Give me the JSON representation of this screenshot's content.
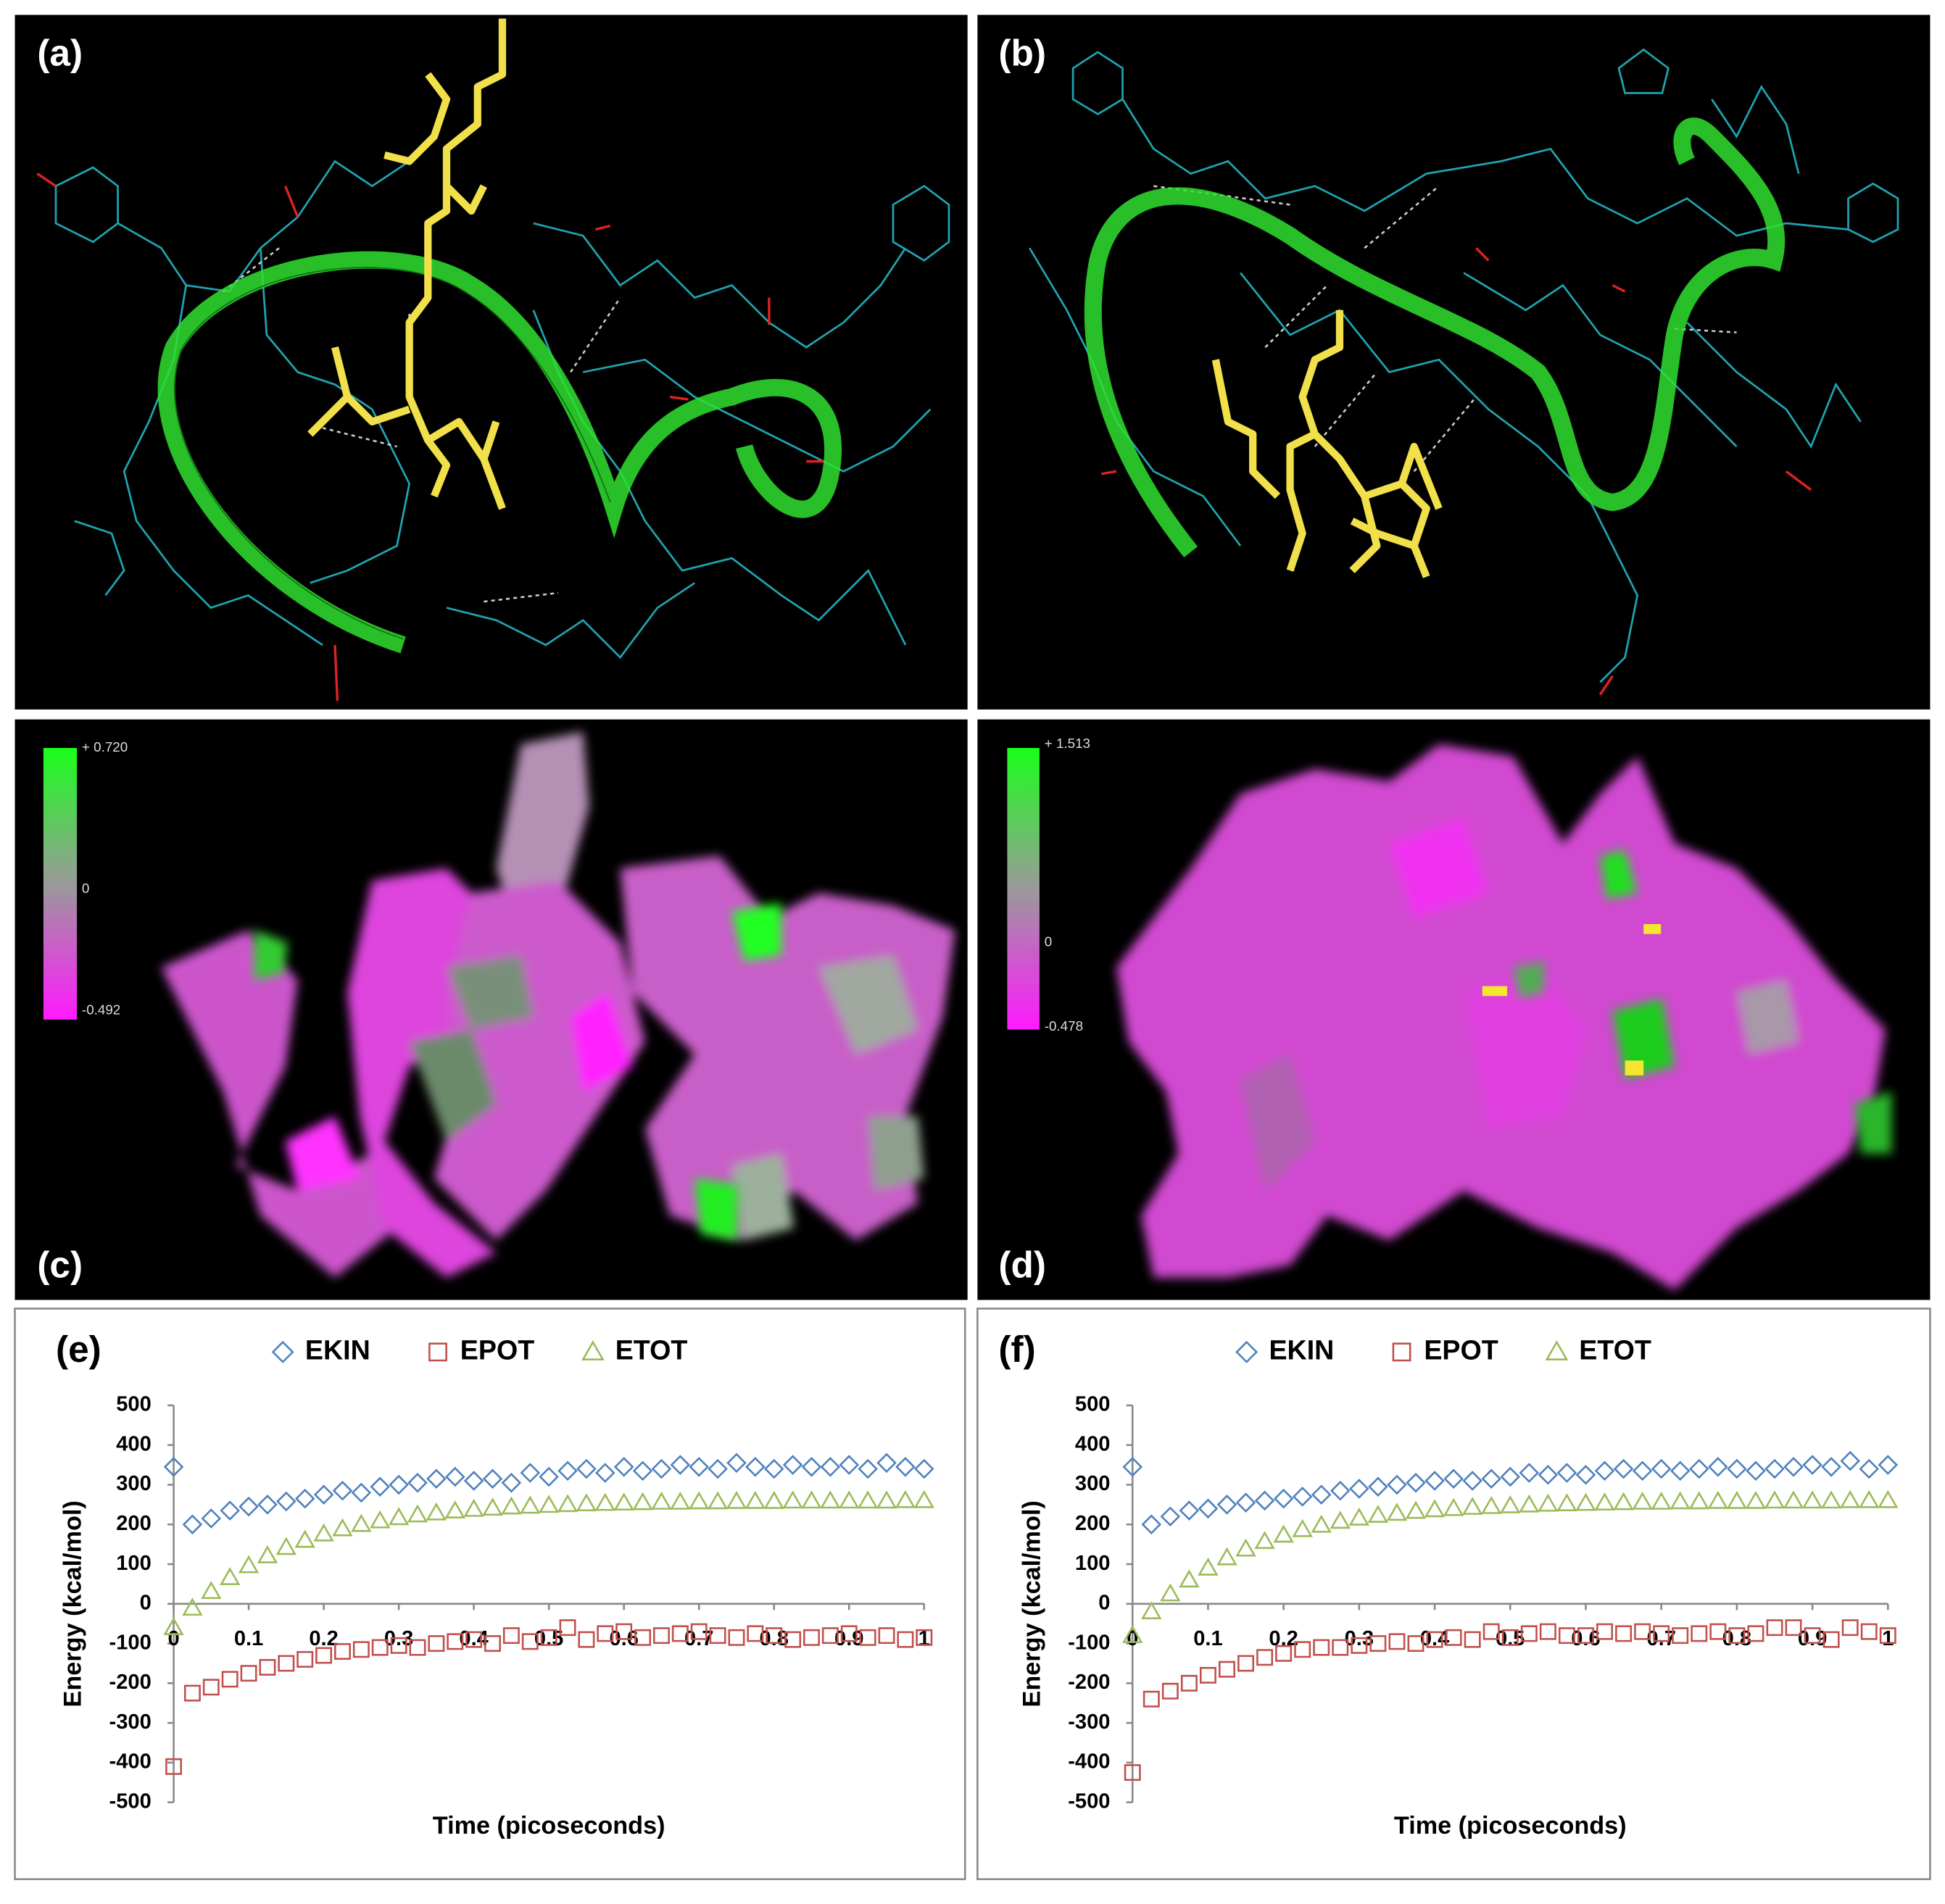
{
  "panel_labels": [
    "(a)",
    "(b)",
    "(c)",
    "(d)"
  ],
  "color_scales": [
    {
      "max": "+ 0.720",
      "mid": "0",
      "min": "-0.492"
    },
    {
      "max": "+ 1.513",
      "mid": "0",
      "min": "-0.478"
    }
  ],
  "chart_data": [
    {
      "type": "scatter",
      "title": "(e)",
      "x_label": "Time (picoseconds)",
      "y_label": "Energy (kcal/mol)",
      "x": [
        0,
        0.025,
        0.05,
        0.075,
        0.1,
        0.125,
        0.15,
        0.175,
        0.2,
        0.225,
        0.25,
        0.275,
        0.3,
        0.325,
        0.35,
        0.375,
        0.4,
        0.425,
        0.45,
        0.475,
        0.5,
        0.525,
        0.55,
        0.575,
        0.6,
        0.625,
        0.65,
        0.675,
        0.7,
        0.725,
        0.75,
        0.775,
        0.8,
        0.825,
        0.85,
        0.875,
        0.9,
        0.925,
        0.95,
        0.975,
        1
      ],
      "xlim": [
        0,
        1
      ],
      "xticks": [
        0,
        0.1,
        0.2,
        0.3,
        0.4,
        0.5,
        0.6,
        0.7,
        0.8,
        0.9,
        1
      ],
      "ylim": [
        -500,
        500
      ],
      "yticks": [
        -500,
        -400,
        -300,
        -200,
        -100,
        0,
        100,
        200,
        300,
        400,
        500
      ],
      "legend": "top",
      "series": [
        {
          "name": "EKIN",
          "color": "#4f81bd",
          "marker": "diamond",
          "values": [
            345,
            200,
            215,
            235,
            245,
            250,
            258,
            265,
            275,
            285,
            280,
            295,
            300,
            305,
            315,
            320,
            310,
            315,
            305,
            330,
            320,
            335,
            340,
            330,
            345,
            335,
            340,
            350,
            345,
            340,
            355,
            345,
            340,
            350,
            345,
            345,
            350,
            340,
            355,
            345,
            340
          ]
        },
        {
          "name": "EPOT",
          "color": "#c0504d",
          "marker": "square",
          "values": [
            -410,
            -225,
            -210,
            -190,
            -175,
            -160,
            -150,
            -140,
            -130,
            -120,
            -115,
            -110,
            -105,
            -110,
            -100,
            -95,
            -90,
            -100,
            -80,
            -95,
            -85,
            -60,
            -90,
            -75,
            -70,
            -85,
            -80,
            -75,
            -70,
            -80,
            -85,
            -75,
            -80,
            -90,
            -85,
            -80,
            -75,
            -85,
            -80,
            -90,
            -85
          ]
        },
        {
          "name": "ETOT",
          "color": "#9bbb59",
          "marker": "triangle",
          "values": [
            -60,
            -11,
            31,
            66,
            96,
            121,
            142,
            160,
            176,
            189,
            200,
            209,
            217,
            224,
            229,
            234,
            238,
            241,
            244,
            246,
            248,
            250,
            252,
            253,
            254,
            255,
            256,
            256,
            257,
            257,
            258,
            258,
            258,
            259,
            259,
            259,
            259,
            259,
            259,
            260,
            260
          ]
        }
      ]
    },
    {
      "type": "scatter",
      "title": "(f)",
      "x_label": "Time (picoseconds)",
      "y_label": "Energy (kcal/mol)",
      "x": [
        0,
        0.025,
        0.05,
        0.075,
        0.1,
        0.125,
        0.15,
        0.175,
        0.2,
        0.225,
        0.25,
        0.275,
        0.3,
        0.325,
        0.35,
        0.375,
        0.4,
        0.425,
        0.45,
        0.475,
        0.5,
        0.525,
        0.55,
        0.575,
        0.6,
        0.625,
        0.65,
        0.675,
        0.7,
        0.725,
        0.75,
        0.775,
        0.8,
        0.825,
        0.85,
        0.875,
        0.9,
        0.925,
        0.95,
        0.975,
        1
      ],
      "xlim": [
        0,
        1
      ],
      "xticks": [
        0,
        0.1,
        0.2,
        0.3,
        0.4,
        0.5,
        0.6,
        0.7,
        0.8,
        0.9,
        1
      ],
      "ylim": [
        -500,
        500
      ],
      "yticks": [
        -500,
        -400,
        -300,
        -200,
        -100,
        0,
        100,
        200,
        300,
        400,
        500
      ],
      "legend": "top",
      "series": [
        {
          "name": "EKIN",
          "color": "#4f81bd",
          "marker": "diamond",
          "values": [
            345,
            200,
            220,
            235,
            240,
            250,
            255,
            260,
            265,
            270,
            275,
            285,
            290,
            295,
            300,
            305,
            310,
            315,
            310,
            315,
            320,
            330,
            325,
            330,
            325,
            335,
            340,
            335,
            340,
            335,
            340,
            345,
            340,
            335,
            340,
            345,
            350,
            345,
            360,
            340,
            350
          ]
        },
        {
          "name": "EPOT",
          "color": "#c0504d",
          "marker": "square",
          "values": [
            -425,
            -240,
            -220,
            -200,
            -180,
            -165,
            -150,
            -135,
            -125,
            -115,
            -110,
            -110,
            -105,
            -100,
            -95,
            -100,
            -90,
            -85,
            -90,
            -70,
            -85,
            -75,
            -70,
            -80,
            -80,
            -70,
            -75,
            -70,
            -75,
            -80,
            -75,
            -70,
            -80,
            -75,
            -60,
            -60,
            -80,
            -90,
            -60,
            -70,
            -80
          ]
        },
        {
          "name": "ETOT",
          "color": "#9bbb59",
          "marker": "triangle",
          "values": [
            -80,
            -20,
            25,
            60,
            90,
            116,
            138,
            157,
            173,
            187,
            198,
            208,
            216,
            223,
            228,
            233,
            237,
            240,
            243,
            245,
            247,
            249,
            251,
            252,
            253,
            254,
            255,
            256,
            256,
            257,
            257,
            258,
            258,
            258,
            259,
            259,
            259,
            259,
            260,
            260,
            260
          ]
        }
      ]
    }
  ]
}
